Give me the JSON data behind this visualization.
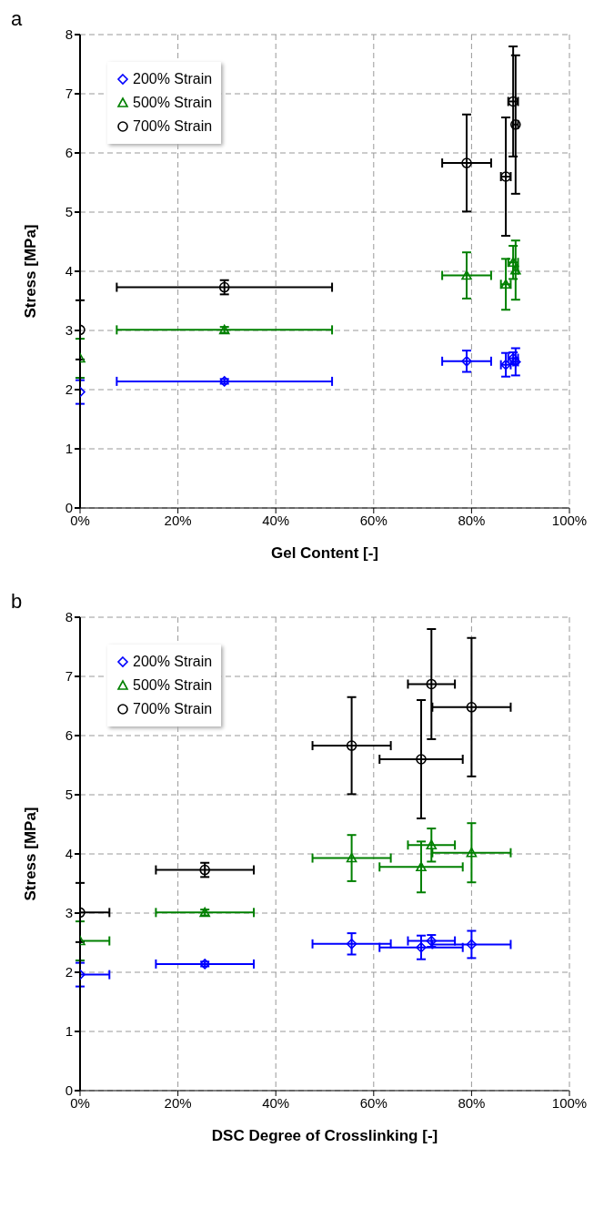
{
  "chart_data": [
    {
      "type": "scatter",
      "title": "a",
      "xlabel": "Gel Content [-]",
      "ylabel": "Stress [MPa]",
      "xlim": [
        0,
        100
      ],
      "xticks": [
        {
          "value": 0,
          "label": "0%"
        },
        {
          "value": 20,
          "label": "20%"
        },
        {
          "value": 40,
          "label": "40%"
        },
        {
          "value": 60,
          "label": "60%"
        },
        {
          "value": 80,
          "label": "80%"
        },
        {
          "value": 100,
          "label": "100%"
        }
      ],
      "ylim": [
        0,
        8
      ],
      "yticks": [
        0,
        1,
        2,
        3,
        4,
        5,
        6,
        7,
        8
      ],
      "grid": true,
      "legend": "top left",
      "line_style": "none",
      "series": [
        {
          "name": "200% Strain",
          "color": "#0000ff",
          "marker": "diamond",
          "x": [
            0,
            29.5,
            79,
            87,
            88.5,
            89
          ],
          "values": [
            1.96,
            2.14,
            2.48,
            2.42,
            2.53,
            2.47
          ],
          "errors": [
            0.2,
            0.04,
            0.18,
            0.2,
            0.1,
            0.23
          ],
          "xerrors": [
            null,
            22,
            5,
            1,
            1,
            0.5
          ]
        },
        {
          "name": "500% Strain",
          "color": "#008000",
          "marker": "triangle",
          "x": [
            0,
            29.5,
            79,
            87,
            88.5,
            89
          ],
          "values": [
            2.53,
            3.01,
            3.93,
            3.78,
            4.15,
            4.02
          ],
          "errors": [
            0.33,
            0.05,
            0.39,
            0.43,
            0.28,
            0.5
          ],
          "xerrors": [
            null,
            22,
            5,
            1,
            1,
            0.5
          ]
        },
        {
          "name": "700% Strain",
          "color": "#000000",
          "marker": "circle",
          "x": [
            0,
            29.5,
            79,
            87,
            88.5,
            89
          ],
          "values": [
            3.01,
            3.73,
            5.83,
            5.6,
            6.87,
            6.48
          ],
          "errors": [
            0.5,
            0.12,
            0.82,
            1.0,
            0.93,
            1.17
          ],
          "xerrors": [
            null,
            22,
            5,
            1,
            1,
            0.5
          ]
        }
      ]
    },
    {
      "type": "scatter",
      "title": "b",
      "xlabel": "DSC Degree of Crosslinking [-]",
      "ylabel": "Stress [MPa]",
      "xlim": [
        0,
        100
      ],
      "xticks": [
        {
          "value": 0,
          "label": "0%"
        },
        {
          "value": 20,
          "label": "20%"
        },
        {
          "value": 40,
          "label": "40%"
        },
        {
          "value": 60,
          "label": "60%"
        },
        {
          "value": 80,
          "label": "80%"
        },
        {
          "value": 100,
          "label": "100%"
        }
      ],
      "ylim": [
        0,
        8
      ],
      "yticks": [
        0,
        1,
        2,
        3,
        4,
        5,
        6,
        7,
        8
      ],
      "grid": true,
      "legend": "top left",
      "line_style": "none",
      "series": [
        {
          "name": "200% Strain",
          "color": "#0000ff",
          "marker": "diamond",
          "x": [
            0,
            25.5,
            55.5,
            69.7,
            71.8,
            80
          ],
          "values": [
            1.96,
            2.14,
            2.48,
            2.42,
            2.53,
            2.47
          ],
          "errors": [
            0.2,
            0.04,
            0.18,
            0.2,
            0.1,
            0.23
          ],
          "xerrors": [
            [
              0,
              6
            ],
            10,
            8,
            8.5,
            4.8,
            8
          ]
        },
        {
          "name": "500% Strain",
          "color": "#008000",
          "marker": "triangle",
          "x": [
            0,
            25.5,
            55.5,
            69.7,
            71.8,
            80
          ],
          "values": [
            2.53,
            3.01,
            3.93,
            3.78,
            4.15,
            4.02
          ],
          "errors": [
            0.33,
            0.05,
            0.39,
            0.43,
            0.28,
            0.5
          ],
          "xerrors": [
            [
              0,
              6
            ],
            10,
            8,
            8.5,
            4.8,
            8
          ]
        },
        {
          "name": "700% Strain",
          "color": "#000000",
          "marker": "circle",
          "x": [
            0,
            25.5,
            55.5,
            69.7,
            71.8,
            80
          ],
          "values": [
            3.01,
            3.73,
            5.83,
            5.6,
            6.87,
            6.48
          ],
          "errors": [
            0.5,
            0.12,
            0.82,
            1.0,
            0.93,
            1.17
          ],
          "xerrors": [
            [
              0,
              6
            ],
            10,
            8,
            8.5,
            4.8,
            8
          ]
        }
      ]
    }
  ]
}
